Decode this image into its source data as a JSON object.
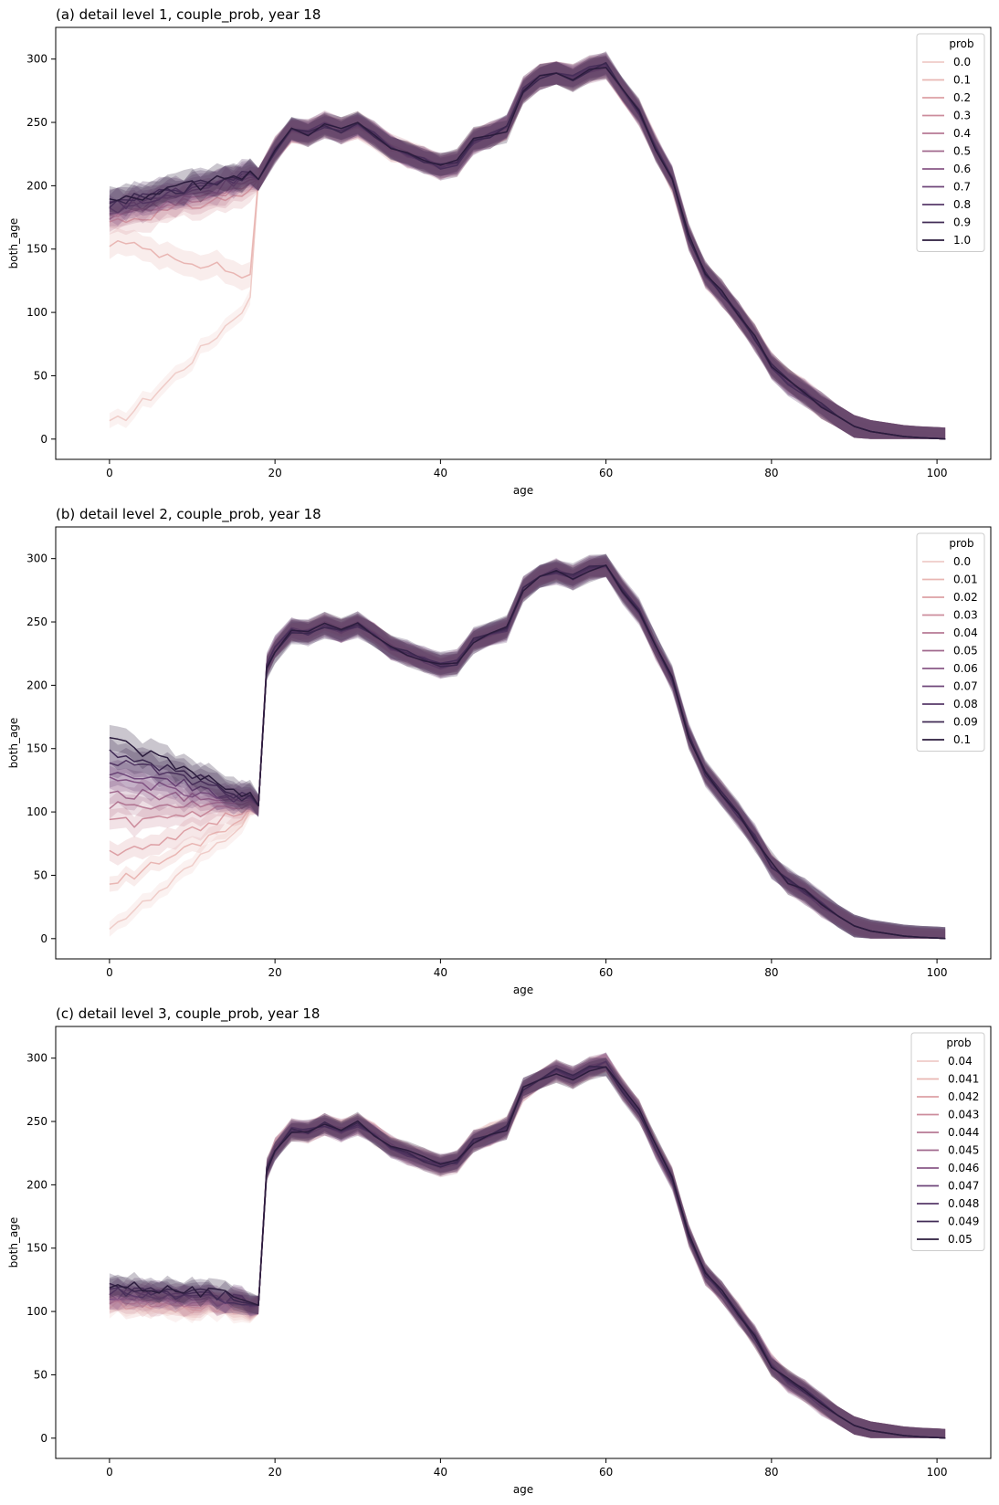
{
  "chart_data": [
    {
      "type": "line",
      "title": "(a) detail level 1, couple_prob, year 18",
      "xlabel": "age",
      "ylabel": "both_age",
      "xlim": [
        -6.5,
        106.5
      ],
      "ylim": [
        -16,
        325
      ],
      "xticks": [
        "0",
        "20",
        "40",
        "60",
        "80",
        "100"
      ],
      "yticks": [
        "0",
        "50",
        "100",
        "150",
        "200",
        "250",
        "300"
      ],
      "legend": {
        "title": "prob",
        "placement": "top-right",
        "entries": [
          "0.0",
          "0.1",
          "0.2",
          "0.3",
          "0.4",
          "0.5",
          "0.6",
          "0.7",
          "0.8",
          "0.9",
          "1.0"
        ]
      },
      "common": {
        "x": [
          18,
          20,
          22,
          24,
          26,
          28,
          30,
          32,
          34,
          36,
          38,
          40,
          42,
          44,
          46,
          48,
          50,
          52,
          54,
          56,
          58,
          60,
          62,
          64,
          66,
          68,
          70,
          72,
          74,
          76,
          78,
          80,
          82,
          84,
          86,
          88,
          90,
          92,
          94,
          96,
          98,
          100,
          101
        ],
        "y": [
          205,
          228,
          243,
          242,
          248,
          243,
          248,
          240,
          230,
          225,
          220,
          215,
          218,
          235,
          240,
          245,
          275,
          285,
          290,
          285,
          292,
          295,
          275,
          258,
          230,
          205,
          160,
          130,
          115,
          98,
          80,
          58,
          45,
          37,
          27,
          18,
          10,
          6,
          4,
          2,
          1,
          0.5,
          0
        ]
      },
      "series": [
        {
          "y0": 11,
          "y_end": 110,
          "band": 6
        },
        {
          "y0": 155,
          "y_end": 128,
          "band": 10
        },
        {
          "y0": 172,
          "y_end": 195,
          "band": 10
        },
        {
          "y0": 175,
          "y_end": 200,
          "band": 10
        },
        {
          "y0": 178,
          "y_end": 203,
          "band": 10
        },
        {
          "y0": 180,
          "y_end": 205,
          "band": 10
        },
        {
          "y0": 182,
          "y_end": 207,
          "band": 10
        },
        {
          "y0": 184,
          "y_end": 208,
          "band": 10
        },
        {
          "y0": 186,
          "y_end": 209,
          "band": 10
        },
        {
          "y0": 187,
          "y_end": 210,
          "band": 10
        },
        {
          "y0": 188,
          "y_end": 210,
          "band": 10
        }
      ]
    },
    {
      "type": "line",
      "title": "(b) detail level 2, couple_prob, year 18",
      "xlabel": "age",
      "ylabel": "both_age",
      "xlim": [
        -6.5,
        106.5
      ],
      "ylim": [
        -16,
        325
      ],
      "xticks": [
        "0",
        "20",
        "40",
        "60",
        "80",
        "100"
      ],
      "yticks": [
        "0",
        "50",
        "100",
        "150",
        "200",
        "250",
        "300"
      ],
      "legend": {
        "title": "prob",
        "placement": "top-right",
        "entries": [
          "0.0",
          "0.01",
          "0.02",
          "0.03",
          "0.04",
          "0.05",
          "0.06",
          "0.07",
          "0.08",
          "0.09",
          "0.1"
        ]
      },
      "common": {
        "x": [
          18,
          19,
          20,
          22,
          24,
          26,
          28,
          30,
          32,
          34,
          36,
          38,
          40,
          42,
          44,
          46,
          48,
          50,
          52,
          54,
          56,
          58,
          60,
          62,
          64,
          66,
          68,
          70,
          72,
          74,
          76,
          78,
          80,
          82,
          84,
          86,
          88,
          90,
          92,
          94,
          96,
          98,
          100,
          101
        ],
        "y": [
          105,
          215,
          228,
          243,
          242,
          248,
          243,
          248,
          240,
          230,
          225,
          220,
          215,
          218,
          235,
          240,
          245,
          275,
          285,
          290,
          285,
          292,
          295,
          275,
          258,
          230,
          205,
          160,
          130,
          115,
          98,
          80,
          58,
          45,
          37,
          27,
          18,
          10,
          6,
          4,
          2,
          1,
          0.5,
          0
        ]
      },
      "series": [
        {
          "y0": 11,
          "y_end": 98,
          "band": 6
        },
        {
          "y0": 44,
          "y_end": 100,
          "band": 6
        },
        {
          "y0": 68,
          "y_end": 102,
          "band": 8
        },
        {
          "y0": 90,
          "y_end": 104,
          "band": 8
        },
        {
          "y0": 105,
          "y_end": 105,
          "band": 8
        },
        {
          "y0": 115,
          "y_end": 106,
          "band": 9
        },
        {
          "y0": 125,
          "y_end": 107,
          "band": 9
        },
        {
          "y0": 133,
          "y_end": 108,
          "band": 10
        },
        {
          "y0": 140,
          "y_end": 109,
          "band": 10
        },
        {
          "y0": 148,
          "y_end": 110,
          "band": 10
        },
        {
          "y0": 155,
          "y_end": 112,
          "band": 10
        }
      ]
    },
    {
      "type": "line",
      "title": "(c) detail level 3, couple_prob, year 18",
      "xlabel": "age",
      "ylabel": "both_age",
      "xlim": [
        -6.5,
        106.5
      ],
      "ylim": [
        -16,
        325
      ],
      "xticks": [
        "0",
        "20",
        "40",
        "60",
        "80",
        "100"
      ],
      "yticks": [
        "0",
        "50",
        "100",
        "150",
        "200",
        "250",
        "300"
      ],
      "legend": {
        "title": "prob",
        "placement": "top-right",
        "entries": [
          "0.04",
          "0.041",
          "0.042",
          "0.043",
          "0.044",
          "0.045",
          "0.046",
          "0.047",
          "0.048",
          "0.049",
          "0.05"
        ]
      },
      "common": {
        "x": [
          18,
          19,
          20,
          22,
          24,
          26,
          28,
          30,
          32,
          34,
          36,
          38,
          40,
          42,
          44,
          46,
          48,
          50,
          52,
          54,
          56,
          58,
          60,
          62,
          64,
          66,
          68,
          70,
          72,
          74,
          76,
          78,
          80,
          82,
          84,
          86,
          88,
          90,
          92,
          94,
          96,
          98,
          100,
          101
        ],
        "y": [
          105,
          212,
          228,
          243,
          242,
          248,
          243,
          248,
          240,
          230,
          225,
          220,
          215,
          218,
          235,
          240,
          245,
          275,
          285,
          290,
          285,
          292,
          295,
          275,
          258,
          230,
          205,
          160,
          130,
          115,
          98,
          80,
          58,
          45,
          37,
          27,
          18,
          10,
          6,
          4,
          2,
          1,
          0.5,
          0
        ]
      },
      "series": [
        {
          "y0": 104,
          "y_end": 102,
          "band": 8
        },
        {
          "y0": 106,
          "y_end": 103,
          "band": 8
        },
        {
          "y0": 108,
          "y_end": 104,
          "band": 8
        },
        {
          "y0": 109,
          "y_end": 105,
          "band": 8
        },
        {
          "y0": 110,
          "y_end": 106,
          "band": 8
        },
        {
          "y0": 112,
          "y_end": 107,
          "band": 8
        },
        {
          "y0": 114,
          "y_end": 108,
          "band": 8
        },
        {
          "y0": 115,
          "y_end": 108,
          "band": 8
        },
        {
          "y0": 117,
          "y_end": 109,
          "band": 8
        },
        {
          "y0": 119,
          "y_end": 110,
          "band": 8
        },
        {
          "y0": 122,
          "y_end": 111,
          "band": 8
        }
      ]
    }
  ]
}
